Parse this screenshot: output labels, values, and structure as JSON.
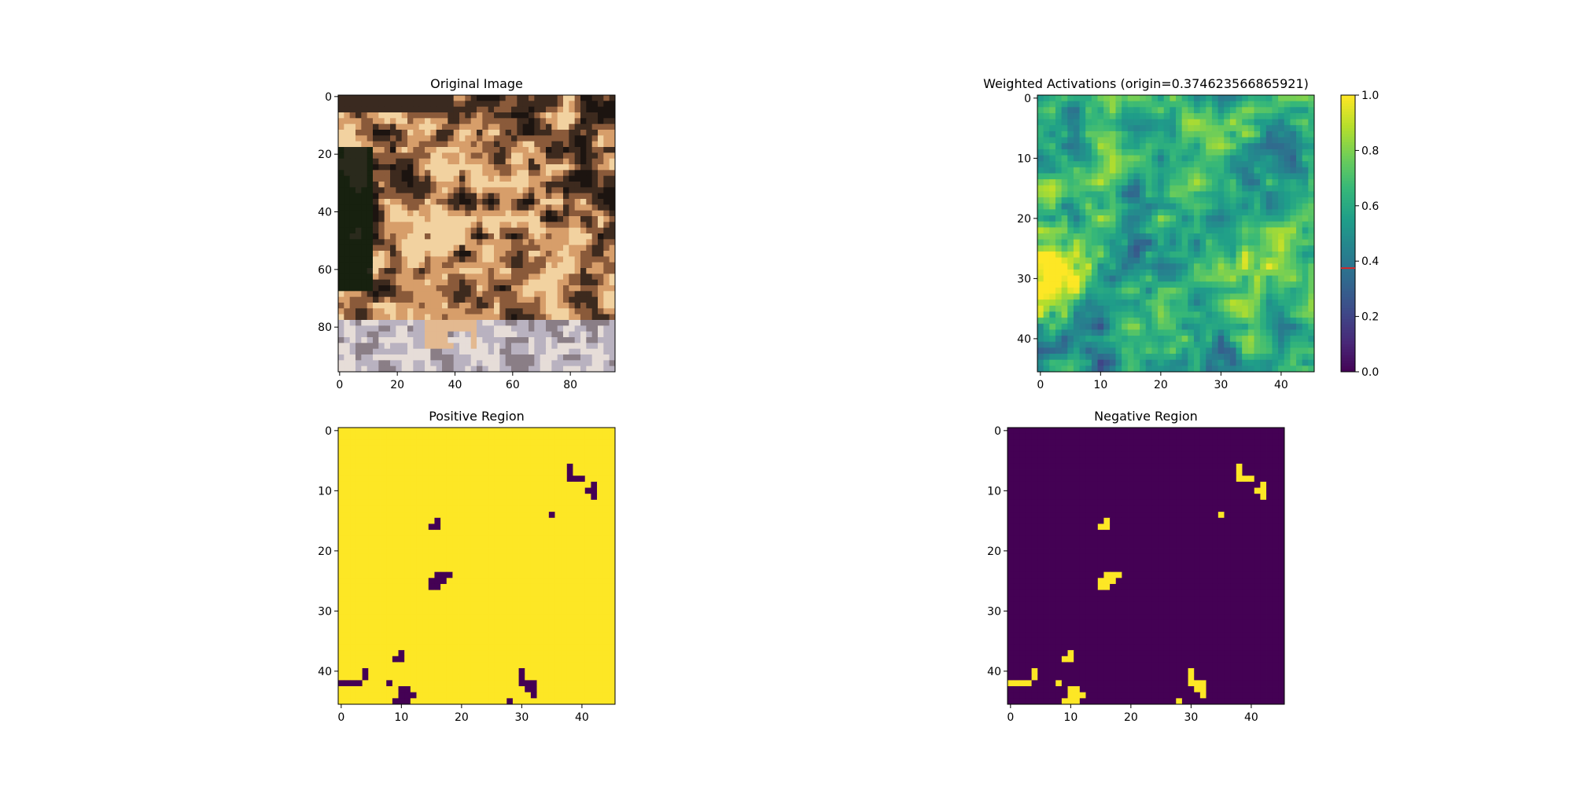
{
  "chart_data": [
    {
      "type": "image",
      "title": "Original Image",
      "description_colors": {
        "dark": "#1a2414",
        "fur_light": "#e8c08a",
        "fur_dark": "#3a2a1c",
        "ground": "#c8c4c8"
      },
      "xlim": [
        -0.5,
        95.5
      ],
      "ylim": [
        95.5,
        -0.5
      ],
      "xticks": [
        0,
        20,
        40,
        60,
        80
      ],
      "yticks": [
        0,
        20,
        40,
        60,
        80
      ]
    },
    {
      "type": "heatmap",
      "title": "Weighted Activations (origin=0.374623566865921)",
      "origin": 0.374623566865921,
      "colormap": "viridis",
      "shape": [
        46,
        46
      ],
      "xlim": [
        -0.5,
        45.5
      ],
      "ylim": [
        45.5,
        -0.5
      ],
      "xticks": [
        0,
        10,
        20,
        30,
        40
      ],
      "yticks": [
        0,
        10,
        20,
        30,
        40
      ],
      "colorbar": {
        "range": [
          0,
          1
        ],
        "ticks": [
          "0.0",
          "0.2",
          "0.4",
          "0.6",
          "0.8",
          "1.0"
        ],
        "marker_value": 0.374623566865921,
        "marker_color": "#d62728"
      }
    },
    {
      "type": "heatmap",
      "title": "Positive Region",
      "colormap": "viridis-binary",
      "shape": [
        46,
        46
      ],
      "xlim": [
        -0.5,
        45.5
      ],
      "ylim": [
        45.5,
        -0.5
      ],
      "xticks": [
        0,
        10,
        20,
        30,
        40
      ],
      "yticks": [
        0,
        10,
        20,
        30,
        40
      ]
    },
    {
      "type": "heatmap",
      "title": "Negative Region",
      "colormap": "viridis-binary",
      "shape": [
        46,
        46
      ],
      "xlim": [
        -0.5,
        45.5
      ],
      "ylim": [
        45.5,
        -0.5
      ],
      "xticks": [
        0,
        10,
        20,
        30,
        40
      ],
      "yticks": [
        0,
        10,
        20,
        30,
        40
      ]
    }
  ],
  "colors": {
    "low": "#440154",
    "high": "#fde725",
    "marker": "#d62728"
  }
}
